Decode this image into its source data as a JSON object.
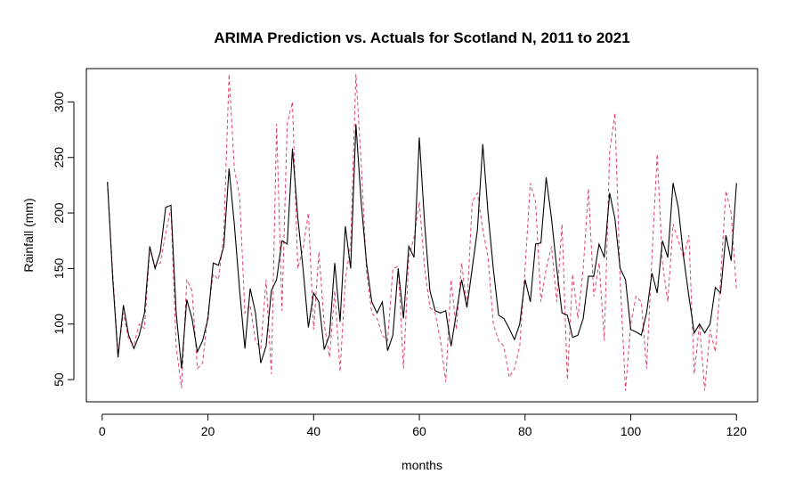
{
  "chart_data": {
    "type": "line",
    "title": "ARIMA Prediction vs. Actuals for Scotland N, 2011 to 2021",
    "xlabel": "months",
    "ylabel": "Rainfall (mm)",
    "xlim": [
      -3,
      124
    ],
    "ylim": [
      30,
      330
    ],
    "xticks": [
      0,
      20,
      40,
      60,
      80,
      100,
      120
    ],
    "yticks": [
      50,
      100,
      150,
      200,
      250,
      300
    ],
    "x": [
      1,
      2,
      3,
      4,
      5,
      6,
      7,
      8,
      9,
      10,
      11,
      12,
      13,
      14,
      15,
      16,
      17,
      18,
      19,
      20,
      21,
      22,
      23,
      24,
      25,
      26,
      27,
      28,
      29,
      30,
      31,
      32,
      33,
      34,
      35,
      36,
      37,
      38,
      39,
      40,
      41,
      42,
      43,
      44,
      45,
      46,
      47,
      48,
      49,
      50,
      51,
      52,
      53,
      54,
      55,
      56,
      57,
      58,
      59,
      60,
      61,
      62,
      63,
      64,
      65,
      66,
      67,
      68,
      69,
      70,
      71,
      72,
      73,
      74,
      75,
      76,
      77,
      78,
      79,
      80,
      81,
      82,
      83,
      84,
      85,
      86,
      87,
      88,
      89,
      90,
      91,
      92,
      93,
      94,
      95,
      96,
      97,
      98,
      99,
      100,
      101,
      102,
      103,
      104,
      105,
      106,
      107,
      108,
      109,
      110,
      111,
      112,
      113,
      114,
      115,
      116,
      117,
      118,
      119,
      120
    ],
    "series": [
      {
        "color": "#000000",
        "style": "solid",
        "values": [
          228,
          140,
          70,
          117,
          90,
          78,
          90,
          110,
          170,
          150,
          165,
          205,
          207,
          110,
          60,
          122,
          105,
          75,
          85,
          105,
          155,
          153,
          170,
          240,
          190,
          130,
          78,
          132,
          110,
          65,
          80,
          130,
          140,
          175,
          172,
          258,
          196,
          150,
          97,
          128,
          120,
          77,
          90,
          155,
          102,
          188,
          150,
          280,
          210,
          155,
          120,
          110,
          120,
          76,
          90,
          150,
          105,
          170,
          160,
          268,
          190,
          130,
          112,
          110,
          112,
          80,
          110,
          140,
          115,
          150,
          185,
          262,
          200,
          150,
          108,
          105,
          96,
          86,
          100,
          140,
          120,
          172,
          173,
          232,
          195,
          150,
          110,
          108,
          88,
          90,
          105,
          143,
          143,
          172,
          160,
          218,
          195,
          150,
          140,
          95,
          93,
          90,
          110,
          146,
          128,
          175,
          160,
          227,
          205,
          160,
          125,
          92,
          100,
          92,
          100,
          133,
          128,
          180,
          157,
          227
        ]
      },
      {
        "color": "#e0456a",
        "style": "dashed",
        "values": [
          228,
          145,
          73,
          110,
          86,
          81,
          100,
          96,
          168,
          152,
          155,
          182,
          204,
          80,
          42,
          140,
          130,
          60,
          65,
          110,
          145,
          140,
          180,
          325,
          240,
          215,
          110,
          117,
          85,
          78,
          140,
          55,
          280,
          112,
          280,
          300,
          150,
          168,
          200,
          95,
          165,
          100,
          70,
          130,
          57,
          140,
          172,
          325,
          245,
          148,
          110,
          105,
          90,
          85,
          150,
          152,
          60,
          160,
          178,
          210,
          150,
          115,
          110,
          85,
          48,
          140,
          95,
          155,
          115,
          210,
          218,
          185,
          160,
          100,
          85,
          80,
          52,
          60,
          80,
          150,
          227,
          210,
          120,
          150,
          170,
          120,
          190,
          50,
          145,
          105,
          150,
          222,
          125,
          155,
          85,
          255,
          290,
          140,
          40,
          100,
          125,
          120,
          60,
          160,
          253,
          155,
          120,
          190,
          175,
          160,
          180,
          55,
          100,
          40,
          95,
          75,
          140,
          220,
          200,
          130
        ]
      }
    ]
  }
}
